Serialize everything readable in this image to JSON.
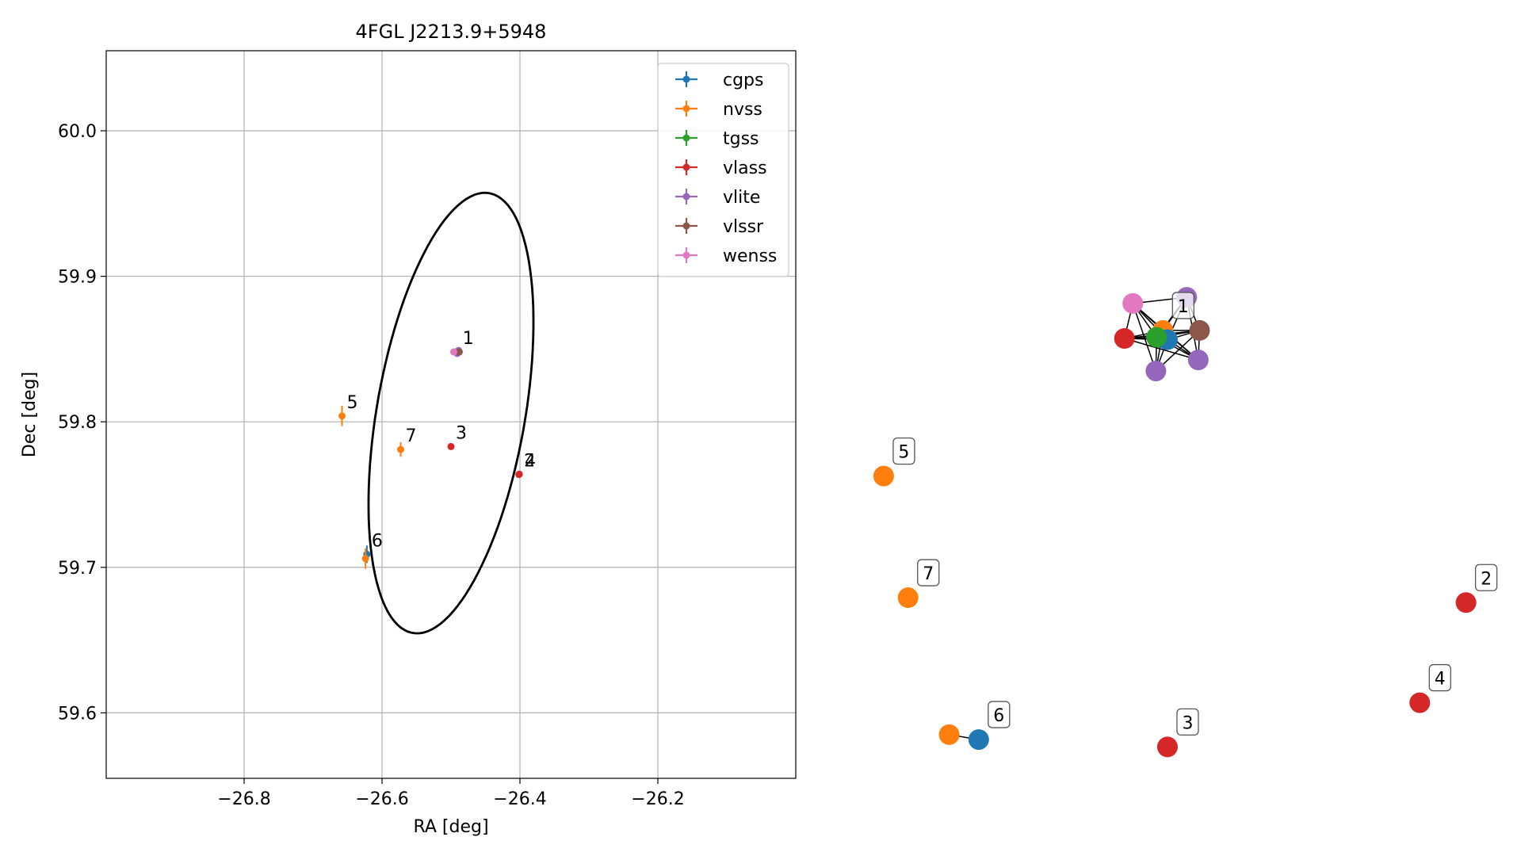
{
  "chart_data": [
    {
      "type": "scatter",
      "title": "4FGL J2213.9+5948",
      "xlabel": "RA [deg]",
      "ylabel": "Dec [deg]",
      "xlim": [
        -27.0,
        -26.0
      ],
      "ylim": [
        59.555,
        60.055
      ],
      "xticks": [
        -26.8,
        -26.6,
        -26.4,
        -26.2
      ],
      "xtick_labels": [
        "−26.8",
        "−26.6",
        "−26.4",
        "−26.2"
      ],
      "yticks": [
        59.6,
        59.7,
        59.8,
        59.9,
        60.0
      ],
      "ytick_labels": [
        "59.6",
        "59.7",
        "59.8",
        "59.9",
        "60.0"
      ],
      "grid": true,
      "legend_position": "top-right",
      "series": [
        {
          "name": "cgps",
          "color": "#1f77b4",
          "points": [
            {
              "x": -26.49,
              "y": 59.848,
              "xerr": 0.002,
              "yerr": 0.002
            },
            {
              "x": -26.622,
              "y": 59.709,
              "xerr": 0.002,
              "yerr": 0.006
            }
          ]
        },
        {
          "name": "nvss",
          "color": "#ff7f0e",
          "points": [
            {
              "x": -26.493,
              "y": 59.848,
              "xerr": 0.002,
              "yerr": 0.002
            },
            {
              "x": -26.658,
              "y": 59.804,
              "xerr": 0.003,
              "yerr": 0.007
            },
            {
              "x": -26.573,
              "y": 59.781,
              "xerr": 0.004,
              "yerr": 0.005
            },
            {
              "x": -26.624,
              "y": 59.706,
              "xerr": 0.003,
              "yerr": 0.007
            }
          ]
        },
        {
          "name": "tgss",
          "color": "#2ca02c",
          "points": [
            {
              "x": -26.492,
              "y": 59.848,
              "xerr": 0.002,
              "yerr": 0.002
            }
          ]
        },
        {
          "name": "vlass",
          "color": "#d62728",
          "points": [
            {
              "x": -26.491,
              "y": 59.848,
              "xerr": 0.001,
              "yerr": 0.001
            },
            {
              "x": -26.5,
              "y": 59.783,
              "xerr": 0.001,
              "yerr": 0.001
            },
            {
              "x": -26.401,
              "y": 59.764,
              "xerr": 0.001,
              "yerr": 0.001
            },
            {
              "x": -26.4015,
              "y": 59.7638,
              "xerr": 0.001,
              "yerr": 0.001
            }
          ]
        },
        {
          "name": "vlite",
          "color": "#9467bd",
          "points": [
            {
              "x": -26.49,
              "y": 59.848,
              "xerr": 0.002,
              "yerr": 0.002
            },
            {
              "x": -26.489,
              "y": 59.849,
              "xerr": 0.002,
              "yerr": 0.002
            },
            {
              "x": -26.491,
              "y": 59.847,
              "xerr": 0.002,
              "yerr": 0.002
            }
          ]
        },
        {
          "name": "vlssr",
          "color": "#8c564b",
          "points": [
            {
              "x": -26.488,
              "y": 59.848,
              "xerr": 0.002,
              "yerr": 0.002
            }
          ]
        },
        {
          "name": "wenss",
          "color": "#e377c2",
          "points": [
            {
              "x": -26.496,
              "y": 59.848,
              "xerr": 0.002,
              "yerr": 0.002
            }
          ]
        }
      ],
      "annotations": [
        {
          "text": "1",
          "x": -26.49,
          "y": 59.848
        },
        {
          "text": "5",
          "x": -26.658,
          "y": 59.804
        },
        {
          "text": "7",
          "x": -26.573,
          "y": 59.781
        },
        {
          "text": "3",
          "x": -26.5,
          "y": 59.783
        },
        {
          "text": "2",
          "x": -26.401,
          "y": 59.764
        },
        {
          "text": "4",
          "x": -26.4,
          "y": 59.764
        },
        {
          "text": "6",
          "x": -26.622,
          "y": 59.709
        }
      ],
      "ellipse": {
        "center_x": -26.5,
        "center_y": 59.806,
        "semi_major": 0.165,
        "semi_minor": 0.1,
        "angle_deg": 60
      }
    },
    {
      "type": "network",
      "node_colors": {
        "cgps": "#1f77b4",
        "nvss": "#ff7f0e",
        "tgss": "#2ca02c",
        "vlass": "#d62728",
        "vlite": "#9467bd",
        "vlssr": "#8c564b",
        "wenss": "#e377c2"
      },
      "nodes": [
        {
          "id": "c1a",
          "series": "nvss",
          "x": 0.488,
          "y": 0.733
        },
        {
          "id": "c1b",
          "series": "cgps",
          "x": 0.495,
          "y": 0.718
        },
        {
          "id": "c1c",
          "series": "tgss",
          "x": 0.478,
          "y": 0.722
        },
        {
          "id": "c1d",
          "series": "vlass",
          "x": 0.428,
          "y": 0.72
        },
        {
          "id": "c1e",
          "series": "wenss",
          "x": 0.441,
          "y": 0.777
        },
        {
          "id": "c1f",
          "series": "vlite",
          "x": 0.525,
          "y": 0.787
        },
        {
          "id": "c1g",
          "series": "vlssr",
          "x": 0.545,
          "y": 0.733
        },
        {
          "id": "c1h",
          "series": "vlite",
          "x": 0.543,
          "y": 0.685
        },
        {
          "id": "c1i",
          "series": "vlite",
          "x": 0.477,
          "y": 0.667
        },
        {
          "id": "n5",
          "series": "nvss",
          "x": 0.053,
          "y": 0.496
        },
        {
          "id": "n7",
          "series": "nvss",
          "x": 0.091,
          "y": 0.298
        },
        {
          "id": "n2",
          "series": "vlass",
          "x": 0.96,
          "y": 0.29
        },
        {
          "id": "n4",
          "series": "vlass",
          "x": 0.888,
          "y": 0.127
        },
        {
          "id": "n3",
          "series": "vlass",
          "x": 0.495,
          "y": 0.055
        },
        {
          "id": "n6a",
          "series": "nvss",
          "x": 0.155,
          "y": 0.075
        },
        {
          "id": "n6b",
          "series": "cgps",
          "x": 0.201,
          "y": 0.067
        }
      ],
      "edges": [
        [
          "c1a",
          "c1b"
        ],
        [
          "c1a",
          "c1c"
        ],
        [
          "c1a",
          "c1d"
        ],
        [
          "c1a",
          "c1e"
        ],
        [
          "c1a",
          "c1f"
        ],
        [
          "c1a",
          "c1g"
        ],
        [
          "c1a",
          "c1h"
        ],
        [
          "c1a",
          "c1i"
        ],
        [
          "c1b",
          "c1c"
        ],
        [
          "c1b",
          "c1d"
        ],
        [
          "c1b",
          "c1e"
        ],
        [
          "c1b",
          "c1f"
        ],
        [
          "c1b",
          "c1g"
        ],
        [
          "c1b",
          "c1h"
        ],
        [
          "c1b",
          "c1i"
        ],
        [
          "c1c",
          "c1d"
        ],
        [
          "c1c",
          "c1e"
        ],
        [
          "c1c",
          "c1f"
        ],
        [
          "c1c",
          "c1g"
        ],
        [
          "c1c",
          "c1h"
        ],
        [
          "c1c",
          "c1i"
        ],
        [
          "c1d",
          "c1e"
        ],
        [
          "c1d",
          "c1g"
        ],
        [
          "c1d",
          "c1h"
        ],
        [
          "c1e",
          "c1f"
        ],
        [
          "c1e",
          "c1h"
        ],
        [
          "c1e",
          "c1i"
        ],
        [
          "c1f",
          "c1g"
        ],
        [
          "c1f",
          "c1h"
        ],
        [
          "c1g",
          "c1h"
        ],
        [
          "c1g",
          "c1i"
        ],
        [
          "n6a",
          "n6b"
        ]
      ],
      "labels": [
        {
          "text": "1",
          "node": "c1a"
        },
        {
          "text": "5",
          "node": "n5"
        },
        {
          "text": "7",
          "node": "n7"
        },
        {
          "text": "2",
          "node": "n2"
        },
        {
          "text": "4",
          "node": "n4"
        },
        {
          "text": "3",
          "node": "n3"
        },
        {
          "text": "6",
          "node": "n6b"
        }
      ]
    }
  ]
}
